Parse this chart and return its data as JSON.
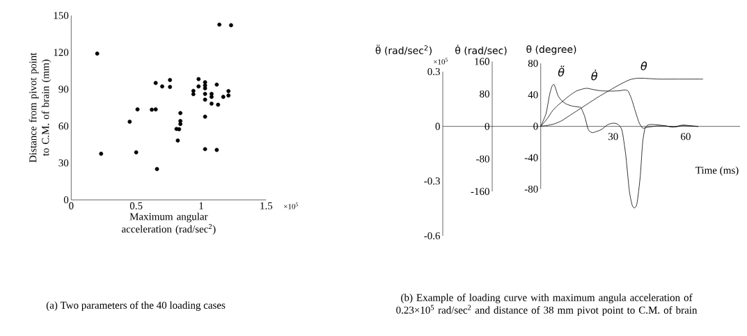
{
  "chart_data": [
    {
      "type": "scatter",
      "xlabel": "Maximum angular acceleration (rad/sec$^{2}$)",
      "ylabel": "Distance from pivot point to C.M. of brain (mm)",
      "annotations": [
        "×10$^{5}$",
        "(a) Two parameters of the 40 loading cases"
      ],
      "xlim": [
        0,
        1.5
      ],
      "ylim": [
        0,
        150
      ],
      "xticks": [
        0,
        0.5,
        1,
        1.5
      ],
      "yticks": [
        0,
        30,
        60,
        90,
        120,
        150
      ],
      "marker": "circle",
      "color": "#000000",
      "x": [
        0.2,
        0.23,
        0.45,
        0.5,
        0.51,
        0.62,
        0.65,
        0.65,
        0.66,
        0.7,
        0.76,
        0.76,
        0.81,
        0.83,
        0.82,
        0.84,
        0.84,
        0.84,
        0.94,
        0.94,
        0.98,
        0.98,
        1.03,
        1.03,
        1.03,
        1.03,
        1.03,
        1.03,
        1.03,
        1.08,
        1.08,
        1.08,
        1.12,
        1.13,
        1.12,
        1.14,
        1.17,
        1.21,
        1.21,
        1.23
      ],
      "values": [
        119,
        37.5,
        63.6,
        38.7,
        73.6,
        73.4,
        73.6,
        95.1,
        25.1,
        92.3,
        97.5,
        91.9,
        57.7,
        57.5,
        48.3,
        70.6,
        64.2,
        61.7,
        88.7,
        86.0,
        98.3,
        92.3,
        95.7,
        93.2,
        90.8,
        86.2,
        81.5,
        67.7,
        41.3,
        86.2,
        83.8,
        78.3,
        93.8,
        77.4,
        40.6,
        142.6,
        83.8,
        88.5,
        84.9,
        142.1
      ]
    },
    {
      "type": "line",
      "xlabel": "Time (ms)",
      "ylabel": "θ̈ (rad/sec$^{2}$)",
      "y2label": "θ̇ (rad/sec)",
      "y3label": "θ (degree)",
      "annotations": [
        "×10$^{5}$",
        "(b) Example of loading curve with maximum angula acceleration of 0.23×10$^{5}$ rad/sec$^{2}$ and distance of 38 mm pivot point to C.M. of brain"
      ],
      "xlim": [
        -40.5,
        82.5
      ],
      "xticks": [
        30,
        60
      ],
      "ylim": [
        -0.6,
        0.3
      ],
      "yticks": [
        0.3,
        0,
        -0.3,
        -0.6
      ],
      "y2lim": [
        -160,
        160
      ],
      "y2ticks": [
        160,
        80,
        0,
        -80,
        -160
      ],
      "y3lim": [
        -80,
        80
      ],
      "y3ticks": [
        80,
        40,
        0,
        -40,
        -80
      ],
      "line_style": "solid",
      "series": [
        {
          "name": "θ̈",
          "color": "#000000",
          "x": [
            0,
            2.2,
            3.7,
            4.7,
            5.5,
            6.2,
            7.2,
            8.7,
            10.7,
            13.2,
            15.7,
            16.7,
            18.2,
            19.7,
            21.2,
            22.7,
            25.2,
            27.7,
            30.2,
            32.2,
            33.7,
            35.2,
            36.7,
            37.9,
            38.9,
            39.9,
            41.2,
            42.2,
            43.2,
            44.7,
            47.7,
            51.7,
            54.7,
            58.7,
            62.7,
            65.2
          ],
          "values": [
            0,
            0.069,
            0.174,
            0.22,
            0.23,
            0.207,
            0.168,
            0.141,
            0.122,
            0.111,
            0.106,
            0.102,
            0.055,
            -0.017,
            -0.034,
            -0.03,
            -0.017,
            0.009,
            0.018,
            0.009,
            -0.024,
            -0.156,
            -0.354,
            -0.433,
            -0.447,
            -0.42,
            -0.275,
            -0.09,
            -0.011,
            0.009,
            0.009,
            0.003,
            -0.004,
            0.007,
            0.003,
            0
          ]
        },
        {
          "name": "θ̇",
          "axis": "y2",
          "color": "#000000",
          "x": [
            0,
            2.7,
            4.7,
            6.7,
            8.7,
            11.7,
            14.7,
            17.2,
            19.2,
            21.7,
            24.7,
            28.7,
            32.7,
            34.7,
            36.2,
            37.7,
            39.2,
            40.7,
            42.2,
            44.2,
            47.7,
            51.7,
            55.7,
            58.7,
            61.7,
            65.2
          ],
          "values": [
            0,
            19,
            37,
            50,
            60,
            75,
            87,
            92,
            94,
            91,
            88,
            87,
            88,
            90,
            87,
            66,
            37,
            10,
            -4,
            -2,
            1,
            1,
            -1,
            2,
            1,
            0
          ]
        },
        {
          "name": "θ",
          "axis": "y3",
          "color": "#000000",
          "x": [
            0,
            2.7,
            5.7,
            8.7,
            11.7,
            14.7,
            18.7,
            23.7,
            28.7,
            32.7,
            36.7,
            39.7,
            42.7,
            48.7,
            55.7,
            67.2
          ],
          "values": [
            0,
            1,
            3,
            7,
            13,
            19,
            27,
            37,
            46,
            53,
            59,
            61,
            61,
            60,
            60,
            60
          ]
        }
      ]
    }
  ]
}
